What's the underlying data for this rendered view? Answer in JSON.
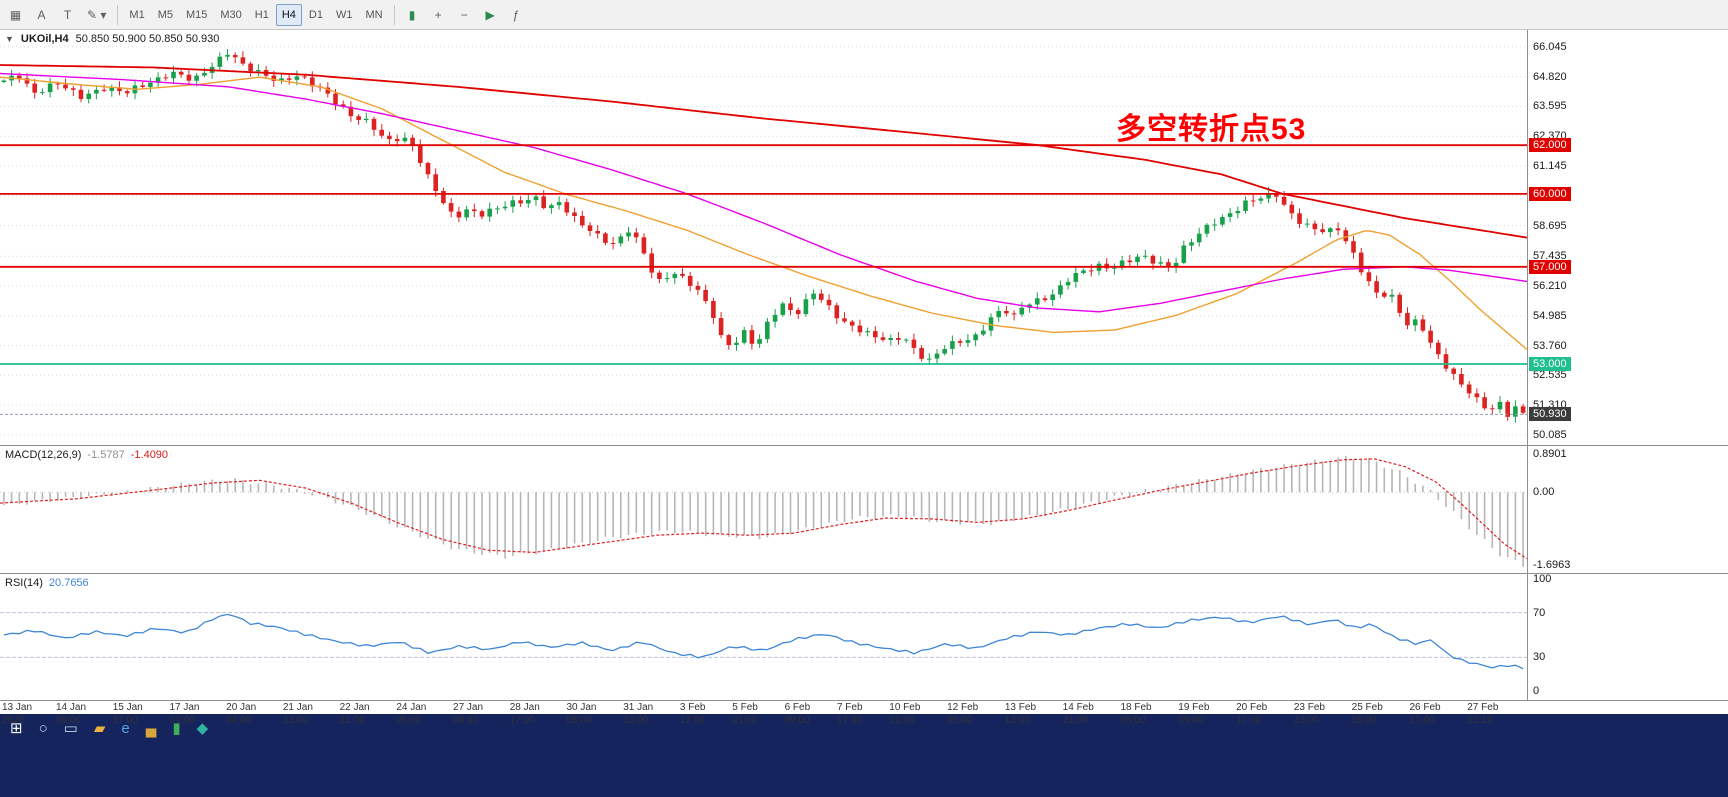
{
  "toolbar": {
    "left_tools": [
      {
        "name": "chart-grid-icon",
        "glyph": "▦"
      },
      {
        "name": "text-label-tool-icon",
        "glyph": "A"
      },
      {
        "name": "trend-tool-icon",
        "glyph": "T"
      },
      {
        "name": "draw-tool-icon",
        "glyph": "✎ ▾"
      }
    ],
    "timeframes": [
      "M1",
      "M5",
      "M15",
      "M30",
      "H1",
      "H4",
      "D1",
      "W1",
      "MN"
    ],
    "active_timeframe": "H4",
    "right_tools": [
      {
        "name": "candlestick-chart-icon",
        "glyph": "▮",
        "color": "#2e8b50"
      },
      {
        "name": "zoom-in-icon",
        "glyph": "+"
      },
      {
        "name": "zoom-out-icon",
        "glyph": "−"
      },
      {
        "name": "auto-scroll-icon",
        "glyph": "▶",
        "color": "#2e8b50"
      },
      {
        "name": "indicators-icon",
        "glyph": "ƒ"
      }
    ]
  },
  "chart": {
    "symbol_label": "UKOil,H4",
    "ohlc": "50.850 50.900 50.850 50.930",
    "annotation": "多空转折点53",
    "price_axis_labels": [
      "66.045",
      "64.820",
      "63.595",
      "62.370",
      "61.145",
      "59.920",
      "58.695",
      "57.435",
      "56.210",
      "54.985",
      "53.760",
      "52.535",
      "51.310",
      "50.085"
    ],
    "hlines": [
      {
        "price": 62.0,
        "label": "62.000",
        "color": "#e00000"
      },
      {
        "price": 60.0,
        "label": "60.000",
        "color": "#e00000"
      },
      {
        "price": 57.0,
        "label": "57.000",
        "color": "#e00000"
      },
      {
        "price": 53.0,
        "label": "53.000",
        "color": "#1fbf8f"
      }
    ],
    "current_price": {
      "price": 50.93,
      "value": "50.930"
    }
  },
  "macd": {
    "title": "MACD(12,26,9)",
    "value_main": "-1.5787",
    "value_signal": "-1.4090",
    "axis": [
      "0.8901",
      "0.00",
      "-1.6963"
    ]
  },
  "rsi": {
    "title": "RSI(14)",
    "value": "20.7656",
    "axis": [
      "100",
      "70",
      "30",
      "0"
    ]
  },
  "time_axis": [
    "13 Jan 2020",
    "14 Jan 09:00",
    "15 Jan 17:00",
    "17 Jan 01:00",
    "20 Jan 04:00",
    "21 Jan 13:00",
    "22 Jan 21:00",
    "24 Jan 05:00",
    "27 Jan 08:00",
    "28 Jan 17:00",
    "30 Jan 05:00",
    "31 Jan 13:00",
    "3 Feb 17:00",
    "5 Feb 01:00",
    "6 Feb 09:00",
    "7 Feb 17:00",
    "10 Feb 21:00",
    "12 Feb 05:00",
    "13 Feb 13:00",
    "14 Feb 21:00",
    "18 Feb 05:00",
    "19 Feb 09:00",
    "20 Feb 17:00",
    "23 Feb 23:00",
    "25 Feb 05:00",
    "26 Feb 17:00",
    "27 Feb 22:15"
  ],
  "taskbar": {
    "icons": [
      {
        "name": "start-button",
        "glyph": "⊞",
        "color": "#ffffff"
      },
      {
        "name": "search-icon",
        "glyph": "○",
        "color": "#cdd6ec"
      },
      {
        "name": "task-view-icon",
        "glyph": "▭",
        "color": "#cdd6ec"
      },
      {
        "name": "file-explorer-icon",
        "glyph": "▰",
        "color": "#e8b33c"
      },
      {
        "name": "browser-icon",
        "glyph": "e",
        "color": "#4aa3e0"
      },
      {
        "name": "folder-icon",
        "glyph": "▄",
        "color": "#d8a43c"
      },
      {
        "name": "trading-app-icon",
        "glyph": "▮",
        "color": "#3fae5a"
      },
      {
        "name": "messaging-app-icon",
        "glyph": "◆",
        "color": "#2fb3a0"
      }
    ]
  },
  "chart_data": {
    "type": "candlestick",
    "symbol": "UKOil",
    "timeframe": "H4",
    "title": "UKOil H4 candlesticks with 3 moving averages, horizontal levels 62/60/57/53, MACD(12,26,9) and RSI(14)",
    "candle_count": 198,
    "price_domain": [
      49.67,
      66.74
    ],
    "key_levels": [
      62.0,
      60.0,
      57.0,
      53.0
    ],
    "last_close": 50.93,
    "price_path": [
      [
        0,
        64.6
      ],
      [
        0.01,
        64.9
      ],
      [
        0.02,
        64.2
      ],
      [
        0.035,
        64.5
      ],
      [
        0.05,
        64.0
      ],
      [
        0.065,
        64.4
      ],
      [
        0.08,
        64.1
      ],
      [
        0.095,
        64.6
      ],
      [
        0.11,
        65.0
      ],
      [
        0.125,
        64.6
      ],
      [
        0.14,
        65.5
      ],
      [
        0.148,
        65.9
      ],
      [
        0.158,
        65.2
      ],
      [
        0.17,
        64.9
      ],
      [
        0.182,
        64.7
      ],
      [
        0.192,
        64.9
      ],
      [
        0.202,
        64.5
      ],
      [
        0.215,
        64.0
      ],
      [
        0.228,
        63.3
      ],
      [
        0.24,
        62.9
      ],
      [
        0.252,
        62.1
      ],
      [
        0.262,
        62.4
      ],
      [
        0.27,
        62.0
      ],
      [
        0.278,
        60.8
      ],
      [
        0.288,
        59.7
      ],
      [
        0.296,
        59.0
      ],
      [
        0.305,
        59.4
      ],
      [
        0.315,
        59.2
      ],
      [
        0.327,
        59.4
      ],
      [
        0.34,
        59.7
      ],
      [
        0.35,
        59.9
      ],
      [
        0.358,
        59.4
      ],
      [
        0.366,
        59.6
      ],
      [
        0.374,
        59.0
      ],
      [
        0.385,
        58.6
      ],
      [
        0.394,
        58.2
      ],
      [
        0.402,
        57.9
      ],
      [
        0.412,
        58.5
      ],
      [
        0.421,
        57.6
      ],
      [
        0.43,
        56.4
      ],
      [
        0.44,
        56.8
      ],
      [
        0.451,
        56.3
      ],
      [
        0.459,
        55.8
      ],
      [
        0.466,
        55.2
      ],
      [
        0.473,
        54.0
      ],
      [
        0.48,
        53.8
      ],
      [
        0.488,
        54.3
      ],
      [
        0.495,
        53.6
      ],
      [
        0.505,
        55.0
      ],
      [
        0.513,
        55.5
      ],
      [
        0.522,
        55.1
      ],
      [
        0.533,
        55.9
      ],
      [
        0.543,
        55.3
      ],
      [
        0.552,
        54.8
      ],
      [
        0.562,
        54.5
      ],
      [
        0.572,
        54.1
      ],
      [
        0.583,
        53.9
      ],
      [
        0.592,
        54.2
      ],
      [
        0.601,
        53.5
      ],
      [
        0.61,
        53.1
      ],
      [
        0.618,
        53.6
      ],
      [
        0.628,
        53.9
      ],
      [
        0.64,
        54.2
      ],
      [
        0.65,
        54.9
      ],
      [
        0.658,
        55.2
      ],
      [
        0.665,
        54.9
      ],
      [
        0.672,
        55.5
      ],
      [
        0.682,
        55.7
      ],
      [
        0.692,
        55.9
      ],
      [
        0.7,
        56.4
      ],
      [
        0.71,
        56.8
      ],
      [
        0.72,
        57.1
      ],
      [
        0.73,
        57.0
      ],
      [
        0.74,
        57.2
      ],
      [
        0.75,
        57.4
      ],
      [
        0.76,
        57.2
      ],
      [
        0.769,
        57.0
      ],
      [
        0.776,
        57.7
      ],
      [
        0.785,
        58.2
      ],
      [
        0.795,
        58.8
      ],
      [
        0.806,
        59.2
      ],
      [
        0.817,
        59.6
      ],
      [
        0.828,
        59.8
      ],
      [
        0.838,
        60.0
      ],
      [
        0.846,
        59.3
      ],
      [
        0.853,
        58.9
      ],
      [
        0.862,
        58.5
      ],
      [
        0.872,
        58.4
      ],
      [
        0.879,
        58.6
      ],
      [
        0.888,
        57.6
      ],
      [
        0.896,
        56.6
      ],
      [
        0.905,
        55.7
      ],
      [
        0.912,
        55.9
      ],
      [
        0.918,
        55.2
      ],
      [
        0.925,
        54.6
      ],
      [
        0.931,
        54.9
      ],
      [
        0.938,
        54.0
      ],
      [
        0.944,
        53.3
      ],
      [
        0.951,
        52.7
      ],
      [
        0.958,
        52.2
      ],
      [
        0.965,
        51.9
      ],
      [
        0.971,
        51.5
      ],
      [
        0.978,
        51.1
      ],
      [
        0.984,
        51.4
      ],
      [
        0.989,
        50.8
      ],
      [
        0.994,
        51.2
      ],
      [
        1,
        50.93
      ]
    ],
    "ma_red": [
      [
        0,
        65.3
      ],
      [
        0.1,
        65.2
      ],
      [
        0.2,
        64.9
      ],
      [
        0.3,
        64.4
      ],
      [
        0.4,
        63.8
      ],
      [
        0.5,
        63.1
      ],
      [
        0.6,
        62.5
      ],
      [
        0.68,
        62.0
      ],
      [
        0.75,
        61.4
      ],
      [
        0.8,
        60.8
      ],
      [
        0.84,
        60.0
      ],
      [
        0.88,
        59.5
      ],
      [
        0.92,
        59.0
      ],
      [
        0.96,
        58.6
      ],
      [
        1,
        58.2
      ]
    ],
    "ma_magenta": [
      [
        0,
        64.95
      ],
      [
        0.08,
        64.7
      ],
      [
        0.15,
        64.4
      ],
      [
        0.2,
        63.9
      ],
      [
        0.25,
        63.3
      ],
      [
        0.3,
        62.6
      ],
      [
        0.35,
        61.9
      ],
      [
        0.4,
        61.0
      ],
      [
        0.45,
        60.0
      ],
      [
        0.5,
        58.8
      ],
      [
        0.55,
        57.5
      ],
      [
        0.6,
        56.4
      ],
      [
        0.64,
        55.7
      ],
      [
        0.68,
        55.3
      ],
      [
        0.72,
        55.15
      ],
      [
        0.76,
        55.5
      ],
      [
        0.8,
        56.0
      ],
      [
        0.84,
        56.5
      ],
      [
        0.88,
        56.9
      ],
      [
        0.92,
        57.0
      ],
      [
        0.95,
        56.85
      ],
      [
        1,
        56.4
      ]
    ],
    "ma_orange": [
      [
        0,
        64.8
      ],
      [
        0.05,
        64.5
      ],
      [
        0.09,
        64.3
      ],
      [
        0.13,
        64.5
      ],
      [
        0.17,
        64.8
      ],
      [
        0.21,
        64.4
      ],
      [
        0.25,
        63.5
      ],
      [
        0.29,
        62.2
      ],
      [
        0.33,
        60.9
      ],
      [
        0.37,
        60.0
      ],
      [
        0.41,
        59.3
      ],
      [
        0.45,
        58.5
      ],
      [
        0.49,
        57.5
      ],
      [
        0.53,
        56.6
      ],
      [
        0.57,
        55.8
      ],
      [
        0.61,
        55.1
      ],
      [
        0.65,
        54.6
      ],
      [
        0.69,
        54.3
      ],
      [
        0.73,
        54.4
      ],
      [
        0.77,
        55.0
      ],
      [
        0.81,
        55.9
      ],
      [
        0.85,
        57.2
      ],
      [
        0.875,
        58.1
      ],
      [
        0.895,
        58.5
      ],
      [
        0.91,
        58.3
      ],
      [
        0.93,
        57.5
      ],
      [
        0.95,
        56.4
      ],
      [
        0.97,
        55.2
      ],
      [
        1,
        53.6
      ]
    ],
    "macd": {
      "domain": [
        -1.88,
        1.08
      ],
      "hist": [
        [
          0,
          -0.3
        ],
        [
          0.04,
          -0.15
        ],
        [
          0.08,
          0.0
        ],
        [
          0.12,
          0.2
        ],
        [
          0.15,
          0.3
        ],
        [
          0.18,
          0.15
        ],
        [
          0.21,
          -0.1
        ],
        [
          0.24,
          -0.5
        ],
        [
          0.27,
          -0.95
        ],
        [
          0.3,
          -1.35
        ],
        [
          0.33,
          -1.5
        ],
        [
          0.36,
          -1.35
        ],
        [
          0.4,
          -1.05
        ],
        [
          0.44,
          -0.9
        ],
        [
          0.47,
          -1.0
        ],
        [
          0.5,
          -1.05
        ],
        [
          0.53,
          -0.85
        ],
        [
          0.56,
          -0.6
        ],
        [
          0.59,
          -0.55
        ],
        [
          0.62,
          -0.7
        ],
        [
          0.65,
          -0.72
        ],
        [
          0.68,
          -0.55
        ],
        [
          0.71,
          -0.3
        ],
        [
          0.74,
          -0.05
        ],
        [
          0.77,
          0.15
        ],
        [
          0.8,
          0.35
        ],
        [
          0.83,
          0.55
        ],
        [
          0.86,
          0.7
        ],
        [
          0.885,
          0.82
        ],
        [
          0.9,
          0.75
        ],
        [
          0.92,
          0.45
        ],
        [
          0.94,
          0.0
        ],
        [
          0.955,
          -0.5
        ],
        [
          0.97,
          -1.0
        ],
        [
          0.985,
          -1.45
        ],
        [
          1,
          -1.7
        ]
      ],
      "signal": [
        [
          0,
          -0.25
        ],
        [
          0.05,
          -0.15
        ],
        [
          0.1,
          0.05
        ],
        [
          0.14,
          0.22
        ],
        [
          0.17,
          0.28
        ],
        [
          0.2,
          0.1
        ],
        [
          0.23,
          -0.25
        ],
        [
          0.26,
          -0.7
        ],
        [
          0.29,
          -1.1
        ],
        [
          0.32,
          -1.35
        ],
        [
          0.35,
          -1.4
        ],
        [
          0.39,
          -1.2
        ],
        [
          0.43,
          -1.0
        ],
        [
          0.46,
          -0.95
        ],
        [
          0.49,
          -1.0
        ],
        [
          0.52,
          -0.95
        ],
        [
          0.55,
          -0.75
        ],
        [
          0.58,
          -0.6
        ],
        [
          0.61,
          -0.62
        ],
        [
          0.64,
          -0.7
        ],
        [
          0.67,
          -0.62
        ],
        [
          0.7,
          -0.42
        ],
        [
          0.73,
          -0.18
        ],
        [
          0.76,
          0.05
        ],
        [
          0.79,
          0.25
        ],
        [
          0.82,
          0.45
        ],
        [
          0.85,
          0.62
        ],
        [
          0.88,
          0.76
        ],
        [
          0.9,
          0.78
        ],
        [
          0.92,
          0.6
        ],
        [
          0.94,
          0.25
        ],
        [
          0.955,
          -0.2
        ],
        [
          0.97,
          -0.7
        ],
        [
          0.985,
          -1.2
        ],
        [
          1,
          -1.55
        ]
      ]
    },
    "rsi": {
      "levels": [
        70,
        30
      ],
      "line": [
        [
          0,
          50
        ],
        [
          0.02,
          54
        ],
        [
          0.04,
          47
        ],
        [
          0.06,
          53
        ],
        [
          0.08,
          49
        ],
        [
          0.1,
          56
        ],
        [
          0.12,
          52
        ],
        [
          0.14,
          66
        ],
        [
          0.15,
          69
        ],
        [
          0.16,
          61
        ],
        [
          0.18,
          57
        ],
        [
          0.2,
          50
        ],
        [
          0.22,
          44
        ],
        [
          0.24,
          40
        ],
        [
          0.26,
          44
        ],
        [
          0.28,
          34
        ],
        [
          0.3,
          40
        ],
        [
          0.32,
          37
        ],
        [
          0.34,
          44
        ],
        [
          0.36,
          39
        ],
        [
          0.38,
          43
        ],
        [
          0.4,
          36
        ],
        [
          0.42,
          44
        ],
        [
          0.44,
          34
        ],
        [
          0.46,
          30
        ],
        [
          0.48,
          40
        ],
        [
          0.5,
          36
        ],
        [
          0.52,
          46
        ],
        [
          0.54,
          51
        ],
        [
          0.56,
          43
        ],
        [
          0.58,
          38
        ],
        [
          0.6,
          34
        ],
        [
          0.62,
          42
        ],
        [
          0.64,
          38
        ],
        [
          0.66,
          47
        ],
        [
          0.68,
          53
        ],
        [
          0.7,
          50
        ],
        [
          0.72,
          56
        ],
        [
          0.74,
          60
        ],
        [
          0.76,
          56
        ],
        [
          0.78,
          63
        ],
        [
          0.8,
          66
        ],
        [
          0.82,
          61
        ],
        [
          0.84,
          67
        ],
        [
          0.86,
          59
        ],
        [
          0.875,
          64
        ],
        [
          0.89,
          56
        ],
        [
          0.9,
          60
        ],
        [
          0.915,
          48
        ],
        [
          0.93,
          42
        ],
        [
          0.94,
          46
        ],
        [
          0.95,
          33
        ],
        [
          0.96,
          27
        ],
        [
          0.97,
          24
        ],
        [
          0.98,
          21
        ],
        [
          0.99,
          23
        ],
        [
          1,
          20.8
        ]
      ]
    }
  }
}
